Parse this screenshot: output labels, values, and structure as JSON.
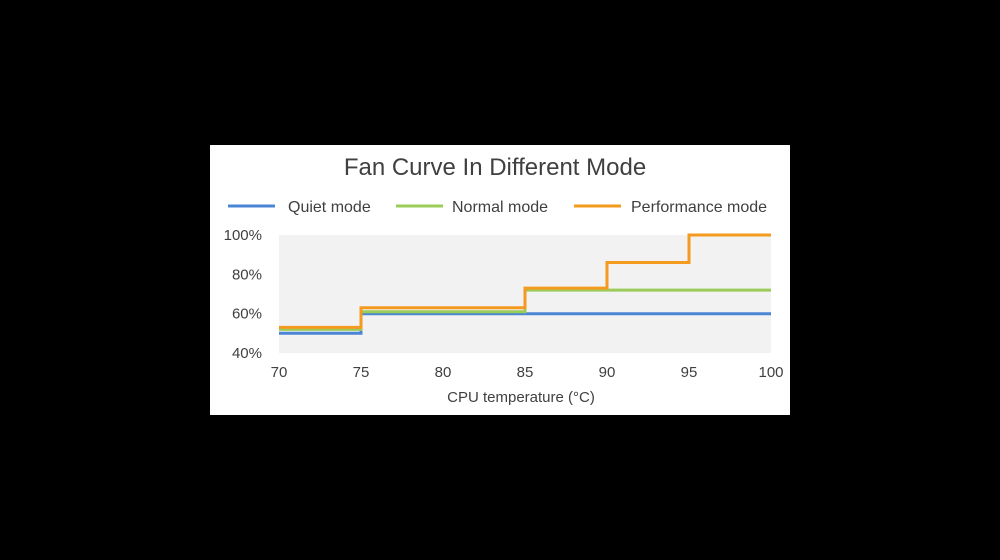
{
  "colors": {
    "background": "#000000",
    "card": "#ffffff",
    "plot_area": "#f2f2f2",
    "text": "#404040"
  },
  "chart_data": {
    "type": "line",
    "step": true,
    "title": "Fan Curve In Different Mode",
    "xlabel": "CPU temperature (°C)",
    "ylabel": "",
    "xlim": [
      70,
      100
    ],
    "ylim": [
      40,
      100
    ],
    "x_ticks": [
      "70",
      "75",
      "80",
      "85",
      "90",
      "95",
      "100"
    ],
    "x_tick_values": [
      70,
      75,
      80,
      85,
      90,
      95,
      100
    ],
    "y_ticks": [
      "40%",
      "60%",
      "80%",
      "100%"
    ],
    "y_tick_values": [
      40,
      60,
      80,
      100
    ],
    "grid": false,
    "legend_position": "top",
    "series": [
      {
        "name": "Quiet mode",
        "color": "#4a86d4",
        "points": [
          [
            70,
            50
          ],
          [
            75,
            50
          ],
          [
            75,
            60
          ],
          [
            100,
            60
          ]
        ]
      },
      {
        "name": "Normal mode",
        "color": "#9bcc5a",
        "points": [
          [
            70,
            52
          ],
          [
            75,
            52
          ],
          [
            75,
            61
          ],
          [
            85,
            61
          ],
          [
            85,
            72
          ],
          [
            100,
            72
          ]
        ]
      },
      {
        "name": "Performance mode",
        "color": "#f39a1f",
        "points": [
          [
            70,
            53
          ],
          [
            75,
            53
          ],
          [
            75,
            63
          ],
          [
            85,
            63
          ],
          [
            85,
            73
          ],
          [
            90,
            73
          ],
          [
            90,
            86
          ],
          [
            95,
            86
          ],
          [
            95,
            100
          ],
          [
            100,
            100
          ]
        ]
      }
    ]
  }
}
